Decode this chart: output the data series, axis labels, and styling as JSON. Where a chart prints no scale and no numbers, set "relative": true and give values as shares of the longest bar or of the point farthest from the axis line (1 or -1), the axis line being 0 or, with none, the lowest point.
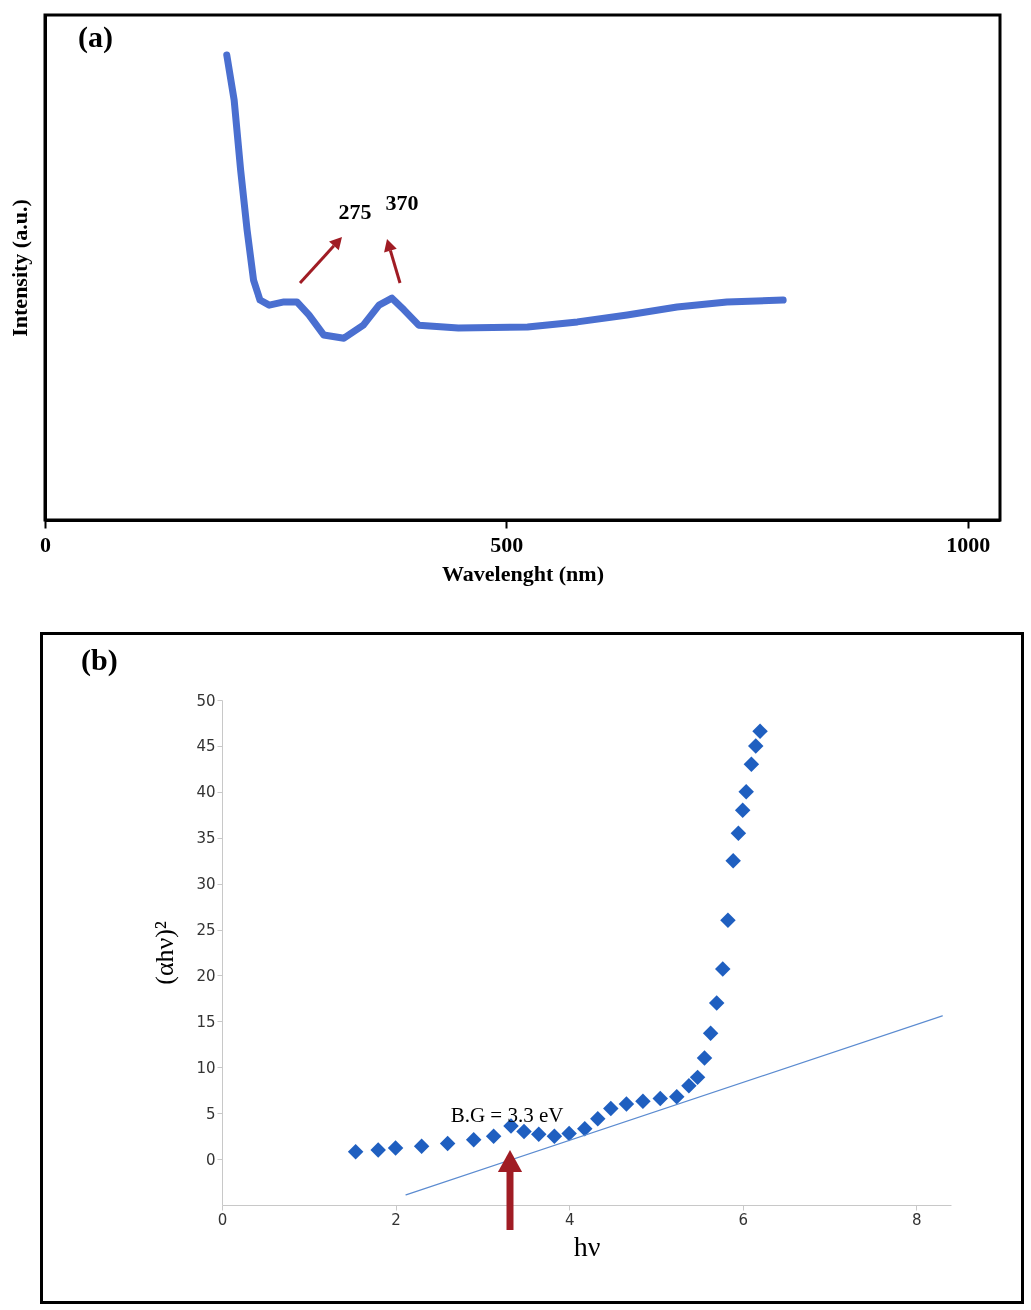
{
  "chart_data": [
    {
      "type": "line",
      "title": "(a)",
      "xlabel": "Wavelenght (nm)",
      "ylabel": "Intensity (a.u.)",
      "relative": true,
      "xlim": [
        0,
        1035
      ],
      "xticks": [
        0,
        500,
        1000
      ],
      "grid": false,
      "x": [
        197,
        205,
        212,
        219,
        226,
        233,
        243,
        259,
        273,
        286,
        302,
        324,
        345,
        362,
        376,
        389,
        405,
        448,
        523,
        577,
        631,
        685,
        739,
        800
      ],
      "series": [
        {
          "color": "#4a6fd0",
          "values": [
            1.0,
            0.903,
            0.753,
            0.624,
            0.516,
            0.473,
            0.462,
            0.469,
            0.469,
            0.441,
            0.398,
            0.391,
            0.419,
            0.462,
            0.477,
            0.452,
            0.419,
            0.413,
            0.415,
            0.426,
            0.441,
            0.458,
            0.469,
            0.473
          ]
        }
      ],
      "annotations": [
        "275",
        "370"
      ]
    },
    {
      "type": "scatter",
      "title": "(b)",
      "xlabel": "hν",
      "ylabel": "(αhν)²",
      "xlim": [
        0,
        8.4
      ],
      "xticks": [
        0,
        2,
        4,
        6,
        8
      ],
      "ylim": [
        -5,
        50
      ],
      "yticks": [
        0,
        5,
        10,
        15,
        20,
        25,
        30,
        35,
        40,
        45,
        50
      ],
      "grid": false,
      "marker": "diamond",
      "series": [
        {
          "color": "#1f5fc0",
          "x": [
            1.54,
            1.8,
            2.0,
            2.3,
            2.6,
            2.9,
            3.13,
            3.33,
            3.48,
            3.65,
            3.83,
            4.0,
            4.18,
            4.33,
            4.48,
            4.66,
            4.85,
            5.05,
            5.24,
            5.38,
            5.48,
            5.56,
            5.63,
            5.7,
            5.77,
            5.83,
            5.89,
            5.95,
            6.0,
            6.04,
            6.1,
            6.15,
            6.2
          ],
          "values": [
            0.8,
            1.0,
            1.2,
            1.4,
            1.7,
            2.1,
            2.5,
            3.6,
            3.0,
            2.7,
            2.5,
            2.8,
            3.3,
            4.4,
            5.5,
            6.0,
            6.3,
            6.6,
            6.8,
            8.0,
            8.9,
            11.0,
            13.7,
            17.0,
            20.7,
            26.0,
            32.5,
            35.5,
            38.0,
            40.0,
            43.0,
            45.0,
            46.6
          ]
        },
        {
          "type": "line",
          "marker": "none",
          "color": "#5b8bd0",
          "x": [
            2.12,
            8.3
          ],
          "values": [
            -3.9,
            15.6
          ]
        }
      ],
      "annotations": [
        "B.G = 3.3 eV"
      ]
    }
  ]
}
